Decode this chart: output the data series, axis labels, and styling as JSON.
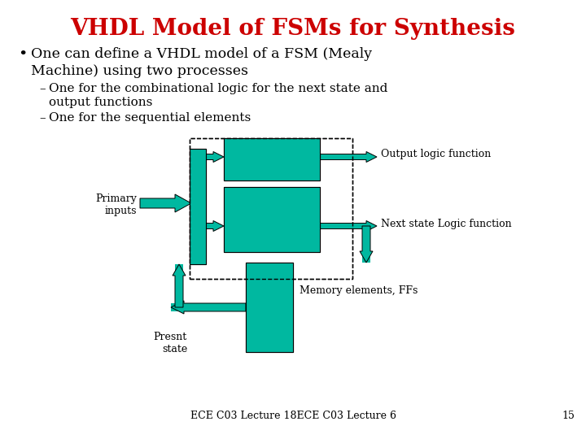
{
  "title": "VHDL Model of FSMs for Synthesis",
  "title_color": "#CC0000",
  "title_fontsize": 20,
  "bg_color": "#FFFFFF",
  "bullet1": "One can define a VHDL model of a FSM (Mealy\nMachine) using two processes",
  "sub1": "One for the combinational logic for the next state and\noutput functions",
  "sub2": "One for the sequential elements",
  "label_output": "Output logic function",
  "label_next": "Next state Logic function",
  "label_primary": "Primary\ninputs",
  "label_presnt": "Presnt\nstate",
  "label_memory": "Memory elements, FFs",
  "footer": "ECE C03 Lecture 18ECE C03 Lecture 6",
  "page_num": "15",
  "teal": "#00B8A0",
  "box_edge": "#000000",
  "text_color": "#000000"
}
